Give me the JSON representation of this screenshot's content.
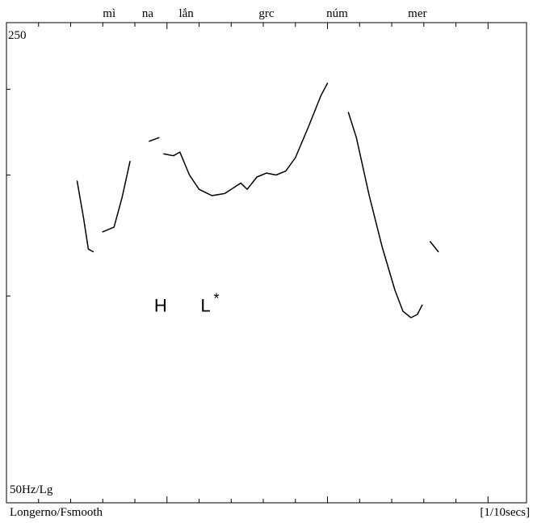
{
  "chart_data": {
    "type": "line",
    "title": "",
    "xlabel": "[1/10secs]",
    "ylabel": "",
    "y_top_label": "250",
    "y_bottom_label": "50Hz/Lg",
    "footer_left": "Longerno/Fsmooth",
    "x_range": [
      0,
      16.2
    ],
    "y_range": [
      50,
      250
    ],
    "y_scale": "log",
    "syllables": [
      {
        "text": "mì",
        "x": 3.2
      },
      {
        "text": "na",
        "x": 4.4
      },
      {
        "text": "lắn",
        "x": 5.6
      },
      {
        "text": "grc",
        "x": 8.1
      },
      {
        "text": "núm",
        "x": 10.3
      },
      {
        "text": "mer",
        "x": 12.8
      }
    ],
    "tone_labels": [
      {
        "text": "H",
        "x": 4.8,
        "y": 97
      },
      {
        "text": "L",
        "x": 6.2,
        "y": 97,
        "sup": "*"
      }
    ],
    "series": [
      {
        "points": [
          [
            2.2,
            147
          ],
          [
            2.4,
            130
          ],
          [
            2.55,
            117
          ],
          [
            2.7,
            116
          ]
        ]
      },
      {
        "points": [
          [
            3.0,
            124
          ],
          [
            3.35,
            126
          ],
          [
            3.6,
            139
          ],
          [
            3.85,
            157
          ]
        ]
      },
      {
        "points": [
          [
            4.45,
            168
          ],
          [
            4.75,
            170
          ]
        ]
      },
      {
        "points": [
          [
            4.9,
            161
          ],
          [
            5.2,
            160
          ],
          [
            5.4,
            162
          ],
          [
            5.7,
            150
          ],
          [
            6.0,
            143
          ],
          [
            6.4,
            140
          ],
          [
            6.8,
            141
          ],
          [
            7.1,
            144
          ],
          [
            7.3,
            146
          ],
          [
            7.5,
            143
          ],
          [
            7.8,
            149
          ],
          [
            8.1,
            151
          ],
          [
            8.4,
            150
          ],
          [
            8.7,
            152
          ],
          [
            9.0,
            159
          ],
          [
            9.4,
            176
          ],
          [
            9.8,
            196
          ],
          [
            10.0,
            204
          ]
        ]
      },
      {
        "points": [
          [
            10.65,
            185
          ],
          [
            10.9,
            170
          ],
          [
            11.3,
            140
          ],
          [
            11.7,
            118
          ],
          [
            12.1,
            102
          ],
          [
            12.35,
            95
          ],
          [
            12.6,
            93
          ],
          [
            12.8,
            94
          ],
          [
            12.95,
            97
          ]
        ]
      },
      {
        "points": [
          [
            13.2,
            120
          ],
          [
            13.45,
            116
          ]
        ]
      }
    ]
  }
}
